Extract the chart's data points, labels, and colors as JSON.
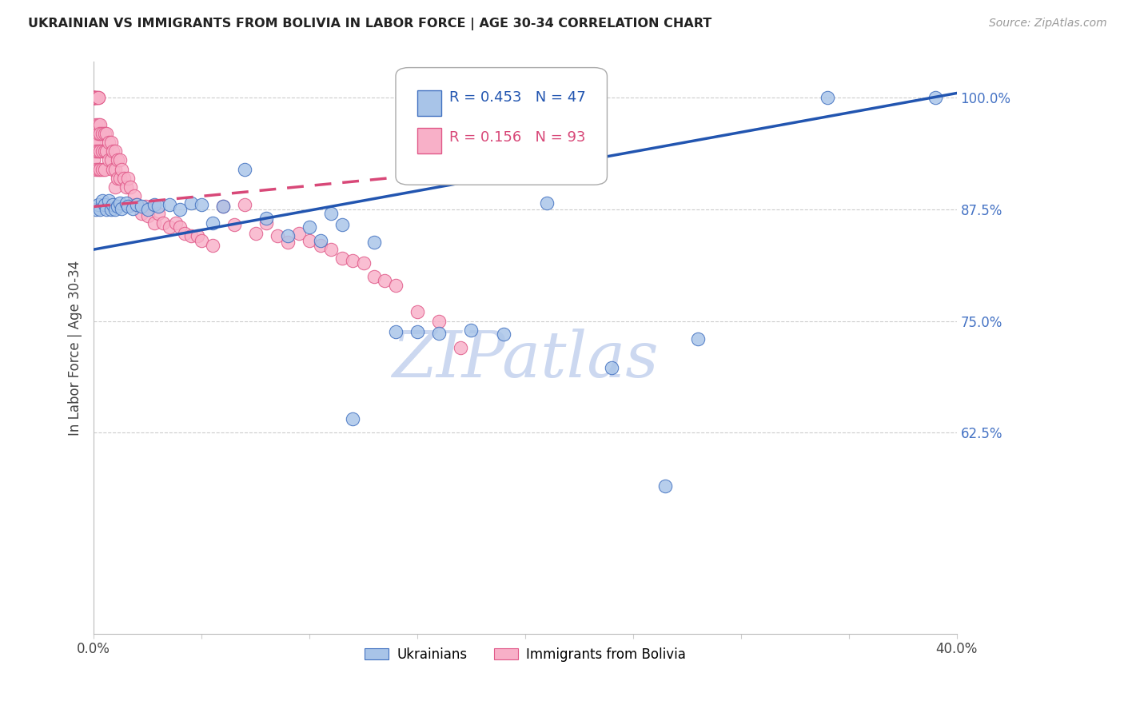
{
  "title": "UKRAINIAN VS IMMIGRANTS FROM BOLIVIA IN LABOR FORCE | AGE 30-34 CORRELATION CHART",
  "source": "Source: ZipAtlas.com",
  "ylabel": "In Labor Force | Age 30-34",
  "xlim": [
    0.0,
    0.4
  ],
  "ylim": [
    0.4,
    1.04
  ],
  "xticks": [
    0.0,
    0.05,
    0.1,
    0.15,
    0.2,
    0.25,
    0.3,
    0.35,
    0.4
  ],
  "xticklabels": [
    "0.0%",
    "",
    "",
    "",
    "",
    "",
    "",
    "",
    "40.0%"
  ],
  "yticks": [
    0.625,
    0.75,
    0.875,
    1.0
  ],
  "yticklabels": [
    "62.5%",
    "75.0%",
    "87.5%",
    "100.0%"
  ],
  "legend_blue_label": "Ukrainians",
  "legend_pink_label": "Immigrants from Bolivia",
  "R_blue": "0.453",
  "N_blue": "47",
  "R_pink": "0.156",
  "N_pink": "93",
  "blue_face_color": "#a8c4e8",
  "blue_edge_color": "#4070c0",
  "pink_face_color": "#f8b0c8",
  "pink_edge_color": "#e05888",
  "blue_line_color": "#2255b0",
  "pink_line_color": "#d84878",
  "watermark_color": "#ccd8f0",
  "blue_x": [
    0.001,
    0.002,
    0.003,
    0.004,
    0.005,
    0.006,
    0.007,
    0.008,
    0.009,
    0.01,
    0.011,
    0.012,
    0.013,
    0.015,
    0.016,
    0.018,
    0.02,
    0.022,
    0.025,
    0.028,
    0.03,
    0.035,
    0.04,
    0.045,
    0.05,
    0.055,
    0.06,
    0.07,
    0.08,
    0.09,
    0.1,
    0.105,
    0.11,
    0.115,
    0.12,
    0.13,
    0.14,
    0.15,
    0.16,
    0.175,
    0.19,
    0.21,
    0.24,
    0.265,
    0.28,
    0.34,
    0.39
  ],
  "blue_y": [
    0.875,
    0.88,
    0.875,
    0.885,
    0.88,
    0.875,
    0.885,
    0.875,
    0.88,
    0.875,
    0.878,
    0.882,
    0.876,
    0.882,
    0.878,
    0.876,
    0.88,
    0.878,
    0.875,
    0.88,
    0.878,
    0.88,
    0.875,
    0.882,
    0.88,
    0.86,
    0.878,
    0.92,
    0.865,
    0.845,
    0.855,
    0.84,
    0.87,
    0.858,
    0.64,
    0.838,
    0.738,
    0.738,
    0.736,
    0.74,
    0.735,
    0.882,
    0.698,
    0.565,
    0.73,
    1.0,
    1.0
  ],
  "pink_x": [
    0.0,
    0.0,
    0.0,
    0.0,
    0.0,
    0.0,
    0.0,
    0.0,
    0.0,
    0.0,
    0.0,
    0.0,
    0.001,
    0.001,
    0.001,
    0.001,
    0.001,
    0.001,
    0.001,
    0.001,
    0.002,
    0.002,
    0.002,
    0.002,
    0.002,
    0.002,
    0.003,
    0.003,
    0.003,
    0.003,
    0.004,
    0.004,
    0.004,
    0.005,
    0.005,
    0.005,
    0.006,
    0.006,
    0.007,
    0.007,
    0.008,
    0.008,
    0.009,
    0.009,
    0.01,
    0.01,
    0.01,
    0.011,
    0.011,
    0.012,
    0.012,
    0.013,
    0.014,
    0.015,
    0.016,
    0.017,
    0.018,
    0.019,
    0.02,
    0.022,
    0.024,
    0.025,
    0.028,
    0.03,
    0.032,
    0.035,
    0.038,
    0.04,
    0.042,
    0.045,
    0.048,
    0.05,
    0.055,
    0.06,
    0.065,
    0.07,
    0.075,
    0.08,
    0.085,
    0.09,
    0.095,
    0.1,
    0.105,
    0.11,
    0.115,
    0.12,
    0.125,
    0.13,
    0.135,
    0.14,
    0.15,
    0.16,
    0.17
  ],
  "pink_y": [
    1.0,
    1.0,
    1.0,
    1.0,
    1.0,
    1.0,
    1.0,
    1.0,
    0.96,
    0.95,
    0.94,
    0.93,
    1.0,
    1.0,
    1.0,
    0.97,
    0.96,
    0.95,
    0.94,
    0.92,
    1.0,
    1.0,
    0.97,
    0.96,
    0.94,
    0.92,
    0.97,
    0.96,
    0.94,
    0.92,
    0.96,
    0.94,
    0.92,
    0.96,
    0.94,
    0.92,
    0.96,
    0.94,
    0.95,
    0.93,
    0.95,
    0.93,
    0.94,
    0.92,
    0.94,
    0.92,
    0.9,
    0.93,
    0.91,
    0.93,
    0.91,
    0.92,
    0.91,
    0.9,
    0.91,
    0.9,
    0.88,
    0.89,
    0.88,
    0.87,
    0.878,
    0.868,
    0.86,
    0.87,
    0.86,
    0.855,
    0.86,
    0.855,
    0.848,
    0.845,
    0.845,
    0.84,
    0.835,
    0.878,
    0.858,
    0.88,
    0.848,
    0.86,
    0.845,
    0.838,
    0.848,
    0.84,
    0.835,
    0.83,
    0.82,
    0.818,
    0.815,
    0.8,
    0.795,
    0.79,
    0.76,
    0.75,
    0.72
  ]
}
